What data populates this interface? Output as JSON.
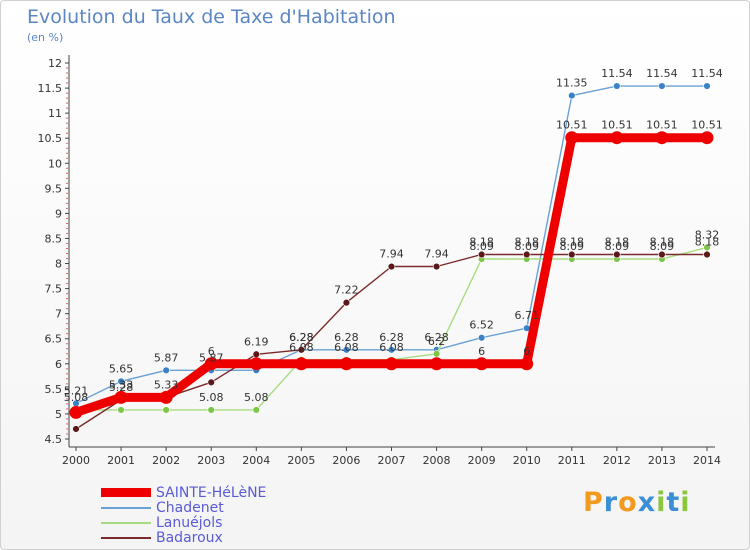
{
  "header": {
    "title": "Evolution du Taux de Taxe d'Habitation",
    "subtitle": "(en %)"
  },
  "logo": {
    "text": "Proxiti",
    "letters": [
      {
        "ch": "P",
        "color": "#f29a1e"
      },
      {
        "ch": "r",
        "color": "#3a8fd6"
      },
      {
        "ch": "o",
        "color": "#f29a1e"
      },
      {
        "ch": "x",
        "color": "#3a8fd6"
      },
      {
        "ch": "i",
        "color": "#8cc63f"
      },
      {
        "ch": "t",
        "color": "#3a8fd6"
      },
      {
        "ch": "i",
        "color": "#8cc63f"
      }
    ]
  },
  "chart_data": {
    "type": "line",
    "x": [
      2000,
      2001,
      2002,
      2003,
      2004,
      2005,
      2006,
      2007,
      2008,
      2009,
      2010,
      2011,
      2012,
      2013,
      2014
    ],
    "xlim": [
      2000,
      2014
    ],
    "ylim": [
      4.5,
      12
    ],
    "yticks": [
      4.5,
      5,
      5.5,
      6,
      6.5,
      7,
      7.5,
      8,
      8.5,
      9,
      9.5,
      10,
      10.5,
      11,
      11.5,
      12
    ],
    "grid": false,
    "legend_position": "bottom-left",
    "series": [
      {
        "name": "Chadenet",
        "color": "#6aa1d4",
        "marker": "#3a82c8",
        "width": 1.4,
        "values": [
          5.21,
          5.65,
          5.87,
          5.87,
          5.87,
          6.28,
          6.28,
          6.28,
          6.28,
          6.52,
          6.71,
          11.35,
          11.54,
          11.54,
          11.54
        ],
        "labels": [
          "5.21",
          "5.65",
          "5.87",
          "5.87",
          "",
          "6.28",
          "6.28",
          "6.28",
          "6.28",
          "6.52",
          "6.71",
          "11.35",
          "11.54",
          "11.54",
          "11.54"
        ]
      },
      {
        "name": "Lanuéjols",
        "color": "#a6dc80",
        "marker": "#7cc648",
        "width": 1.4,
        "values": [
          5.08,
          5.08,
          5.08,
          5.08,
          5.08,
          6.08,
          6.08,
          6.08,
          6.2,
          8.09,
          8.09,
          8.09,
          8.09,
          8.09,
          8.32
        ],
        "labels": [
          "5.08",
          "",
          "",
          "5.08",
          "5.08",
          "6.08",
          "6.08",
          "6.08",
          "6.2",
          "8.09",
          "8.09",
          "8.09",
          "8.09",
          "8.09",
          "8.32"
        ]
      },
      {
        "name": "Badaroux",
        "color": "#7a2a2a",
        "marker": "#5c1818",
        "width": 1.4,
        "values": [
          4.7,
          5.28,
          5.33,
          5.63,
          6.19,
          6.28,
          7.22,
          7.94,
          7.94,
          8.18,
          8.18,
          8.18,
          8.18,
          8.18,
          8.18
        ],
        "labels": [
          "",
          "5.28",
          "5.33",
          "",
          "6.19",
          "6.28",
          "7.22",
          "7.94",
          "7.94",
          "8.18",
          "8.18",
          "8.18",
          "8.18",
          "8.18",
          "8.18"
        ]
      },
      {
        "name": "SAINTE-HéLèNE",
        "color": "#ee0000",
        "marker": "#ee0000",
        "width": 9,
        "values": [
          5.03,
          5.33,
          5.33,
          6,
          6,
          6,
          6,
          6,
          6,
          6,
          6,
          10.51,
          10.51,
          10.51,
          10.51
        ],
        "labels": [
          "",
          "5.33",
          "",
          "6",
          "",
          "",
          "",
          "",
          "",
          "6",
          "6",
          "10.51",
          "10.51",
          "10.51",
          "10.51"
        ]
      }
    ],
    "legend_order": [
      "SAINTE-HéLèNE",
      "Chadenet",
      "Lanuéjols",
      "Badaroux"
    ]
  }
}
